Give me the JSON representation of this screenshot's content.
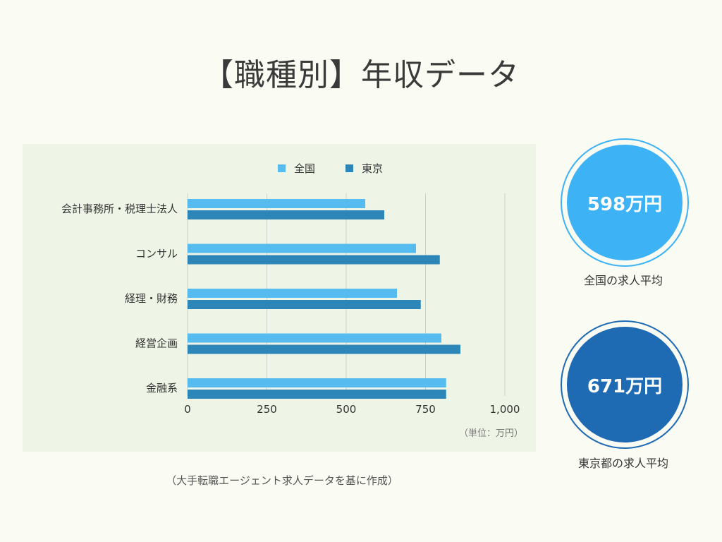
{
  "title": "【職種別】年収データ",
  "colors": {
    "zenkoku": "#56bbee",
    "tokyo": "#2c87b8",
    "circle_zenkoku": "#3db2f5",
    "circle_tokyo": "#1e6bb4",
    "panel_bg": "#eef5e6"
  },
  "chart_data": {
    "type": "bar",
    "orientation": "horizontal",
    "categories": [
      "会計事務所・税理士法人",
      "コンサル",
      "経理・財務",
      "経営企画",
      "金融系"
    ],
    "series": [
      {
        "name": "全国",
        "values": [
          560,
          720,
          660,
          800,
          815
        ]
      },
      {
        "name": "東京",
        "values": [
          620,
          795,
          735,
          860,
          815
        ]
      }
    ],
    "xlim": [
      0,
      1000
    ],
    "ticks": [
      "0",
      "250",
      "500",
      "750",
      "1,000"
    ],
    "tick_values": [
      0,
      250,
      500,
      750,
      1000
    ],
    "grid": true,
    "legend_position": "top",
    "unit_note": "（単位：万円）"
  },
  "stats": [
    {
      "value": "598万円",
      "caption": "全国の求人平均"
    },
    {
      "value": "671万円",
      "caption": "東京都の求人平均"
    }
  ],
  "source": "（大手転職エージェント求人データを基に作成）"
}
